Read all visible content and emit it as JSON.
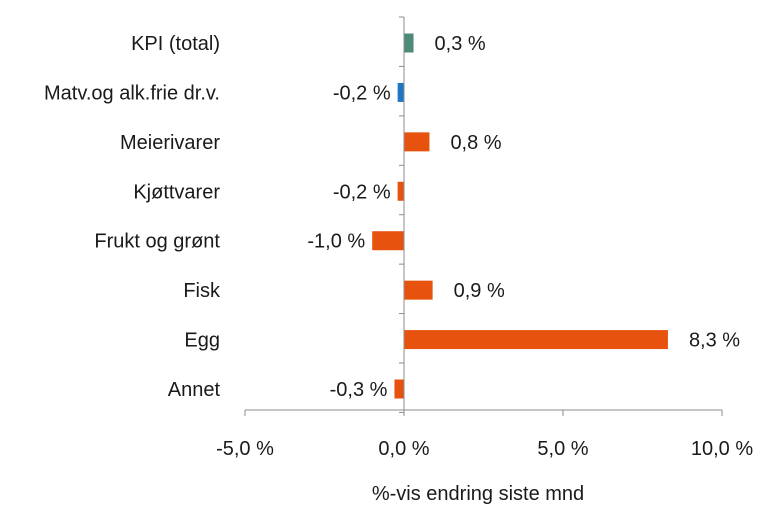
{
  "chart_data": {
    "type": "bar",
    "orientation": "horizontal",
    "categories": [
      "KPI (total)",
      "Matv.og alk.frie dr.v.",
      "Meierivarer",
      "Kjøttvarer",
      "Frukt og grønt",
      "Fisk",
      "Egg",
      "Annet"
    ],
    "values": [
      0.3,
      -0.2,
      0.8,
      -0.2,
      -1.0,
      0.9,
      8.3,
      -0.3
    ],
    "data_labels": [
      "0,3 %",
      "-0,2 %",
      "0,8 %",
      "-0,2 %",
      "-1,0 %",
      "0,9 %",
      "8,3 %",
      "-0,3 %"
    ],
    "bar_colors": [
      "#4e8a7a",
      "#1f77c4",
      "#e8520f",
      "#e8520f",
      "#e8520f",
      "#e8520f",
      "#e8520f",
      "#e8520f"
    ],
    "xlabel": "%-vis endring siste mnd",
    "ylabel": "",
    "xlim": [
      -5,
      10
    ],
    "xticks": [
      -5,
      0,
      5,
      10
    ],
    "xtick_labels": [
      "-5,0 %",
      "0,0 %",
      "5,0 %",
      "10,0 %"
    ],
    "grid": false,
    "legend": "none"
  }
}
